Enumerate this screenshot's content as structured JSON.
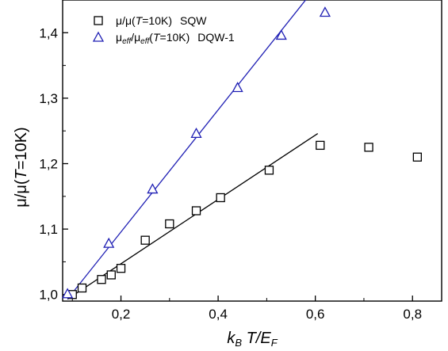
{
  "chart_data": {
    "type": "scatter",
    "xlim": [
      0.08,
      0.86
    ],
    "ylim": [
      0.99,
      1.45
    ],
    "xticks": [
      0.2,
      0.4,
      0.6,
      0.8
    ],
    "xtick_labels": [
      "0,2",
      "0,4",
      "0,6",
      "0,8"
    ],
    "yticks": [
      1.0,
      1.1,
      1.2,
      1.3,
      1.4
    ],
    "ytick_labels": [
      "1,0",
      "1,1",
      "1,2",
      "1,3",
      "1,4"
    ],
    "xlabel": {
      "base": "k",
      "sub1": "B",
      "mid": " T/E",
      "sub2": "F"
    },
    "ylabel": {
      "pre": "μ/μ(",
      "italic": "T",
      "post": "=10K)"
    },
    "grid": false,
    "legend_position": "top-left",
    "series": [
      {
        "id": "sqw",
        "label": {
          "pre": "μ/μ(",
          "italic": "T",
          "post": "=10K)",
          "tag": "SQW"
        },
        "marker": "square",
        "color": "#000000",
        "x": [
          0.1,
          0.12,
          0.16,
          0.18,
          0.2,
          0.25,
          0.3,
          0.355,
          0.405,
          0.505,
          0.61,
          0.71,
          0.81
        ],
        "y": [
          1.0,
          1.01,
          1.023,
          1.03,
          1.04,
          1.083,
          1.108,
          1.128,
          1.148,
          1.19,
          1.228,
          1.225,
          1.21
        ],
        "fit": {
          "x": [
            0.09,
            0.605
          ],
          "y": [
            0.993,
            1.246
          ],
          "color": "#000000"
        }
      },
      {
        "id": "dqw1",
        "label": {
          "pre": "μ",
          "sub1": "eff",
          "mid": "/μ",
          "sub2": "eff",
          "post": "(",
          "italic": "T",
          "post2": "=10K)",
          "tag": "DQW-1"
        },
        "marker": "triangle",
        "color": "#1f1fb4",
        "x": [
          0.09,
          0.175,
          0.265,
          0.355,
          0.44,
          0.53,
          0.62
        ],
        "y": [
          1.0,
          1.077,
          1.16,
          1.245,
          1.315,
          1.395,
          1.43
        ],
        "fit": {
          "x": [
            0.09,
            0.58
          ],
          "y": [
            0.993,
            1.45
          ],
          "color": "#1f1fb4"
        }
      }
    ]
  }
}
